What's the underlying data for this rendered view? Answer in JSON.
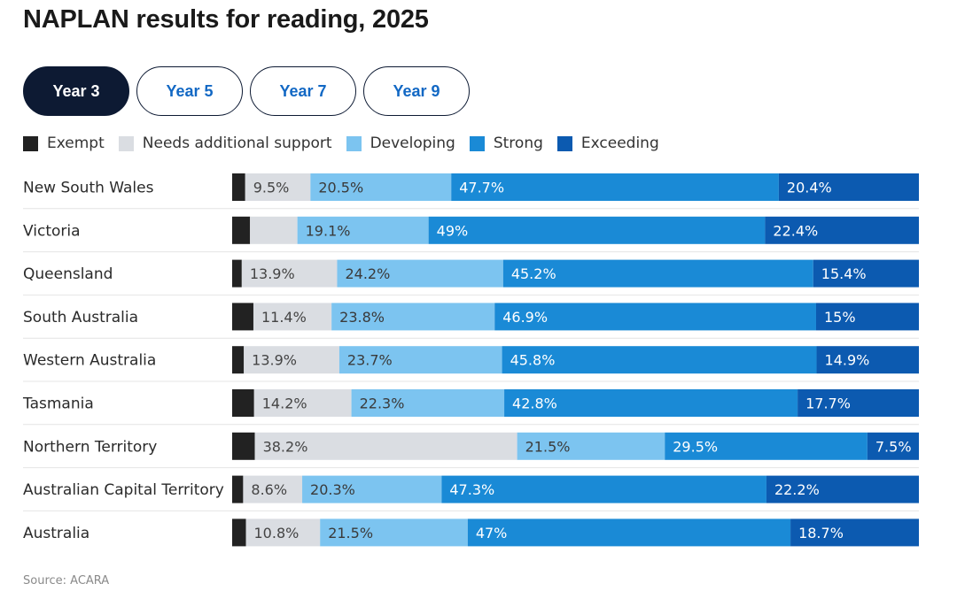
{
  "title": "NAPLAN results for reading, 2025",
  "tabs": [
    {
      "label": "Year 3",
      "active": true
    },
    {
      "label": "Year 5",
      "active": false
    },
    {
      "label": "Year 7",
      "active": false
    },
    {
      "label": "Year 9",
      "active": false
    }
  ],
  "legend": [
    {
      "label": "Exempt",
      "color": "#222222"
    },
    {
      "label": "Needs additional support",
      "color": "#dadde2"
    },
    {
      "label": "Developing",
      "color": "#7cc4f0"
    },
    {
      "label": "Strong",
      "color": "#1a8ad6"
    },
    {
      "label": "Exceeding",
      "color": "#0c5ab0"
    }
  ],
  "source": "Source: ACARA",
  "chart_data": {
    "type": "bar",
    "orientation": "horizontal",
    "stacked": true,
    "title": "NAPLAN results for reading, 2025",
    "xlim": [
      0,
      100
    ],
    "categories": [
      "New South Wales",
      "Victoria",
      "Queensland",
      "South Australia",
      "Western Australia",
      "Tasmania",
      "Northern Territory",
      "Australian Capital Territory",
      "Australia"
    ],
    "series": [
      {
        "name": "Exempt",
        "values": [
          1.9,
          2.6,
          1.4,
          3.1,
          1.7,
          3.2,
          3.3,
          1.6,
          2.0
        ],
        "labels": [
          "",
          "",
          "",
          "",
          "",
          "",
          "",
          "",
          ""
        ]
      },
      {
        "name": "Needs additional support",
        "values": [
          9.5,
          6.9,
          13.9,
          11.4,
          13.9,
          14.2,
          38.2,
          8.6,
          10.8
        ],
        "labels": [
          "9.5%",
          "",
          "13.9%",
          "11.4%",
          "13.9%",
          "14.2%",
          "38.2%",
          "8.6%",
          "10.8%"
        ]
      },
      {
        "name": "Developing",
        "values": [
          20.5,
          19.1,
          24.2,
          23.8,
          23.7,
          22.3,
          21.5,
          20.3,
          21.5
        ],
        "labels": [
          "20.5%",
          "19.1%",
          "24.2%",
          "23.8%",
          "23.7%",
          "22.3%",
          "21.5%",
          "20.3%",
          "21.5%"
        ]
      },
      {
        "name": "Strong",
        "values": [
          47.7,
          49,
          45.2,
          46.9,
          45.8,
          42.8,
          29.5,
          47.3,
          47
        ],
        "labels": [
          "47.7%",
          "49%",
          "45.2%",
          "46.9%",
          "45.8%",
          "42.8%",
          "29.5%",
          "47.3%",
          "47%"
        ]
      },
      {
        "name": "Exceeding",
        "values": [
          20.4,
          22.4,
          15.4,
          15,
          14.9,
          17.7,
          7.5,
          22.2,
          18.7
        ],
        "labels": [
          "20.4%",
          "22.4%",
          "15.4%",
          "15%",
          "14.9%",
          "17.7%",
          "7.5%",
          "22.2%",
          "18.7%"
        ]
      }
    ]
  }
}
